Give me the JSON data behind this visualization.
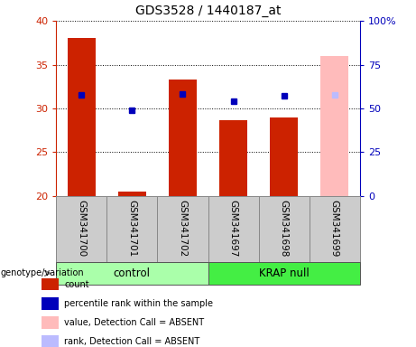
{
  "title": "GDS3528 / 1440187_at",
  "samples": [
    "GSM341700",
    "GSM341701",
    "GSM341702",
    "GSM341697",
    "GSM341698",
    "GSM341699"
  ],
  "count_values": [
    38.0,
    20.5,
    33.3,
    28.7,
    29.0,
    null
  ],
  "percentile_values": [
    31.5,
    29.8,
    31.7,
    30.8,
    31.4,
    31.5
  ],
  "absent_value": 36.0,
  "absent_rank_value": 31.5,
  "absent_index": 5,
  "ylim_left": [
    20,
    40
  ],
  "ylim_right": [
    0,
    100
  ],
  "yticks_left": [
    20,
    25,
    30,
    35,
    40
  ],
  "yticks_right": [
    0,
    25,
    50,
    75,
    100
  ],
  "ytick_labels_right": [
    "0",
    "25",
    "50",
    "75",
    "100%"
  ],
  "color_count": "#cc2200",
  "color_percentile": "#0000bb",
  "color_absent_value": "#ffbbbb",
  "color_absent_rank": "#bbbbff",
  "color_group_control": "#aaffaa",
  "color_group_krap": "#44ee44",
  "color_sample_bg": "#cccccc",
  "bar_width": 0.55,
  "group_label": "genotype/variation",
  "legend_items": [
    {
      "label": "count",
      "color": "#cc2200"
    },
    {
      "label": "percentile rank within the sample",
      "color": "#0000bb"
    },
    {
      "label": "value, Detection Call = ABSENT",
      "color": "#ffbbbb"
    },
    {
      "label": "rank, Detection Call = ABSENT",
      "color": "#bbbbff"
    }
  ]
}
